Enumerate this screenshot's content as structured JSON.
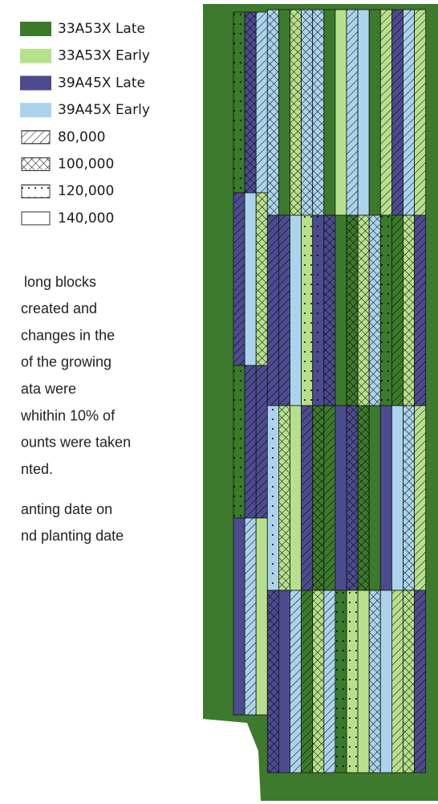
{
  "legend": {
    "varieties": [
      {
        "label": "33A53X Late",
        "color": "#3b7a2b"
      },
      {
        "label": "33A53X Early",
        "color": "#b7e08c"
      },
      {
        "label": "39A45X Late",
        "color": "#4d4b8f"
      },
      {
        "label": "39A45X Early",
        "color": "#abd4ec"
      }
    ],
    "densities": [
      {
        "label": "80,000"
      },
      {
        "label": "100,000"
      },
      {
        "label": "120,000"
      },
      {
        "label": "140,000"
      }
    ]
  },
  "text": {
    "lines": [
      "long blocks",
      "created and",
      "changes in the",
      "of the growing",
      "ata were",
      "whithin 10% of",
      "ounts were taken",
      "nted."
    ],
    "lines2": [
      "anting date on",
      "nd planting date"
    ]
  }
}
